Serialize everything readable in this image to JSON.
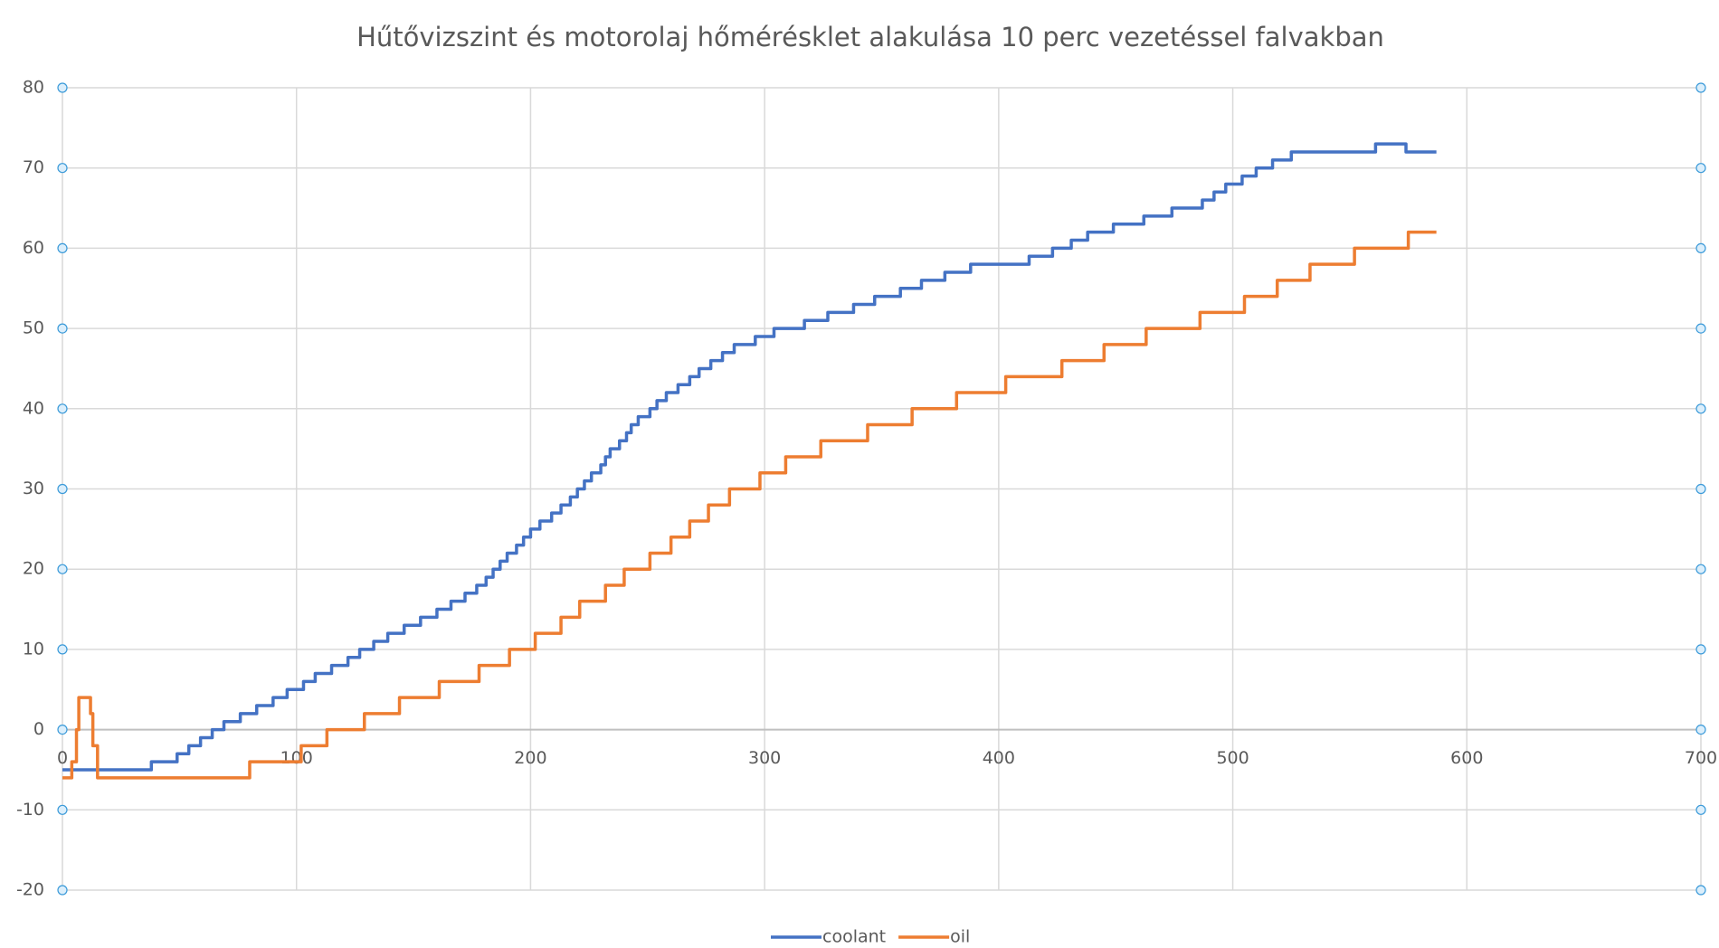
{
  "chart_data": {
    "type": "line",
    "title": "Hűtővizszint és motorolaj hőmérésklet alakulása 10 perc vezetéssel falvakban",
    "step": true,
    "xlim": [
      0,
      700
    ],
    "xticks": [
      0,
      100,
      200,
      300,
      400,
      500,
      600,
      700
    ],
    "ylim": [
      -20,
      80
    ],
    "yticks": [
      -20,
      -10,
      0,
      10,
      20,
      30,
      40,
      50,
      60,
      70,
      80
    ],
    "grid": true,
    "legend": "bottom",
    "series": [
      {
        "name": "coolant",
        "color": "#4472c4",
        "x": [
          0,
          38,
          49,
          54,
          59,
          64,
          69,
          76,
          83,
          90,
          96,
          103,
          108,
          115,
          122,
          127,
          133,
          139,
          146,
          153,
          160,
          166,
          172,
          177,
          181,
          184,
          187,
          190,
          194,
          197,
          200,
          204,
          209,
          213,
          217,
          220,
          223,
          226,
          230,
          232,
          234,
          238,
          241,
          243,
          246,
          251,
          254,
          258,
          263,
          268,
          272,
          277,
          282,
          287,
          296,
          304,
          317,
          327,
          338,
          347,
          358,
          367,
          377,
          388,
          413,
          423,
          431,
          438,
          449,
          462,
          474,
          487,
          492,
          497,
          504,
          510,
          517,
          525,
          561,
          574,
          587
        ],
        "values": [
          -5,
          -4,
          -3,
          -2,
          -1,
          0,
          1,
          2,
          3,
          4,
          5,
          6,
          7,
          8,
          9,
          10,
          11,
          12,
          13,
          14,
          15,
          16,
          17,
          18,
          19,
          20,
          21,
          22,
          23,
          24,
          25,
          26,
          27,
          28,
          29,
          30,
          31,
          32,
          33,
          34,
          35,
          36,
          37,
          38,
          39,
          40,
          41,
          42,
          43,
          44,
          45,
          46,
          47,
          48,
          49,
          50,
          51,
          52,
          53,
          54,
          55,
          56,
          57,
          58,
          59,
          60,
          61,
          62,
          63,
          64,
          65,
          66,
          67,
          68,
          69,
          70,
          71,
          72,
          73,
          72,
          72
        ]
      },
      {
        "name": "oil",
        "color": "#ed7d31",
        "x": [
          0,
          4,
          6,
          7,
          12,
          13,
          15,
          80,
          102,
          113,
          129,
          144,
          161,
          178,
          191,
          202,
          213,
          221,
          232,
          240,
          251,
          260,
          268,
          276,
          285,
          298,
          309,
          324,
          344,
          363,
          382,
          403,
          427,
          445,
          463,
          486,
          505,
          519,
          533,
          552,
          575,
          587
        ],
        "values": [
          -6,
          -4,
          0,
          4,
          2,
          -2,
          -6,
          -4,
          -2,
          0,
          2,
          4,
          6,
          8,
          10,
          12,
          14,
          16,
          18,
          20,
          22,
          24,
          26,
          28,
          30,
          32,
          34,
          36,
          38,
          40,
          42,
          44,
          46,
          48,
          50,
          52,
          54,
          56,
          58,
          60,
          62,
          62
        ]
      }
    ]
  }
}
